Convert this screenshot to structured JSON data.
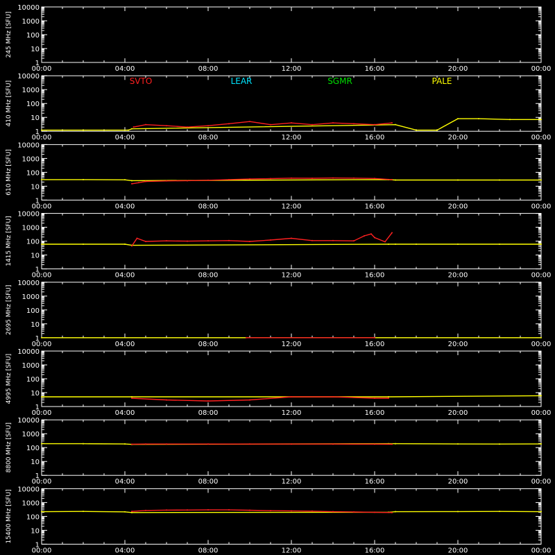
{
  "colors": {
    "background": "#000000",
    "axes": "#ffffff",
    "SVTO": "#ff2020",
    "LEAR": "#00e5ff",
    "SGMR": "#00dd00",
    "PALE": "#ffff00"
  },
  "chart_data": [
    {
      "type": "line",
      "frequency_label": "245 MHz",
      "unit_label": "[SFU]",
      "yscale": "log",
      "ylim": [
        1,
        10000
      ],
      "ytick_labels": [
        "10000",
        "1000",
        "100",
        "10",
        "1"
      ],
      "xlim": [
        "00:00",
        "24:00"
      ],
      "xtick_labels": [
        "00:00",
        "04:00",
        "08:00",
        "12:00",
        "16:00",
        "20:00",
        "00:00"
      ],
      "legend": [],
      "series": []
    },
    {
      "type": "line",
      "frequency_label": "410 MHz",
      "unit_label": "[SFU]",
      "yscale": "log",
      "ylim": [
        1,
        10000
      ],
      "ytick_labels": [
        "10000",
        "1000",
        "100",
        "10",
        "1"
      ],
      "xlim": [
        "00:00",
        "24:00"
      ],
      "xtick_labels": [
        "00:00",
        "04:00",
        "08:00",
        "12:00",
        "16:00",
        "20:00",
        "00:00"
      ],
      "legend": [
        "SVTO",
        "LEAR",
        "SGMR",
        "PALE"
      ],
      "series": [
        {
          "name": "PALE",
          "color": "#ffff00",
          "x": [
            "00:00",
            "02:00",
            "04:10",
            "04:20",
            "17:00",
            "18:00",
            "19:00",
            "20:00",
            "21:00",
            "22:30",
            "24:00"
          ],
          "y": [
            1.2,
            1.2,
            1.2,
            1.5,
            3,
            1.2,
            1.2,
            8,
            8,
            7,
            7
          ]
        },
        {
          "name": "SVTO",
          "color": "#ff2020",
          "x": [
            "04:25",
            "05:00",
            "06:00",
            "07:00",
            "08:00",
            "09:00",
            "10:00",
            "11:00",
            "12:00",
            "13:00",
            "14:00",
            "15:00",
            "16:00",
            "16:50"
          ],
          "y": [
            2,
            3,
            2.5,
            2,
            2.5,
            3.5,
            5,
            3,
            4,
            3,
            4,
            3.5,
            3,
            4
          ]
        }
      ]
    },
    {
      "type": "line",
      "frequency_label": "610 MHz",
      "unit_label": "[SFU]",
      "yscale": "log",
      "ylim": [
        1,
        10000
      ],
      "ytick_labels": [
        "10000",
        "1000",
        "100",
        "10",
        "1"
      ],
      "xlim": [
        "00:00",
        "24:00"
      ],
      "xtick_labels": [
        "00:00",
        "04:00",
        "08:00",
        "12:00",
        "16:00",
        "20:00",
        "00:00"
      ],
      "legend": [],
      "series": [
        {
          "name": "PALE",
          "color": "#ffff00",
          "x": [
            "00:00",
            "02:00",
            "04:00",
            "04:20",
            "16:40",
            "17:00",
            "20:00",
            "22:00",
            "24:00"
          ],
          "y": [
            30,
            30,
            29,
            25,
            30,
            28,
            28,
            28,
            28
          ]
        },
        {
          "name": "SVTO",
          "color": "#ff2020",
          "x": [
            "04:20",
            "04:40",
            "05:00",
            "06:00",
            "07:00",
            "08:00",
            "09:00",
            "10:00",
            "11:00",
            "12:00",
            "13:00",
            "14:00",
            "15:00",
            "16:00",
            "16:50"
          ],
          "y": [
            15,
            18,
            22,
            24,
            25,
            27,
            30,
            33,
            35,
            38,
            37,
            39,
            38,
            36,
            30
          ]
        }
      ]
    },
    {
      "type": "line",
      "frequency_label": "1415 MHz",
      "unit_label": "[SFU]",
      "yscale": "log",
      "ylim": [
        1,
        10000
      ],
      "ytick_labels": [
        "10000",
        "1000",
        "100",
        "10",
        "1"
      ],
      "xlim": [
        "00:00",
        "24:00"
      ],
      "xtick_labels": [
        "00:00",
        "04:00",
        "08:00",
        "12:00",
        "16:00",
        "20:00",
        "00:00"
      ],
      "legend": [],
      "series": [
        {
          "name": "PALE",
          "color": "#ffff00",
          "x": [
            "00:00",
            "02:00",
            "04:00",
            "04:20",
            "16:40",
            "17:00",
            "18:00",
            "20:00",
            "22:00",
            "24:00"
          ],
          "y": [
            60,
            60,
            60,
            50,
            60,
            60,
            60,
            60,
            60,
            60
          ]
        },
        {
          "name": "SVTO",
          "color": "#ff2020",
          "x": [
            "04:20",
            "04:35",
            "05:00",
            "06:00",
            "07:00",
            "08:00",
            "09:00",
            "10:00",
            "11:00",
            "12:00",
            "13:00",
            "14:00",
            "15:00",
            "15:30",
            "15:50",
            "16:00",
            "16:30",
            "16:50"
          ],
          "y": [
            45,
            160,
            95,
            105,
            100,
            105,
            110,
            95,
            120,
            160,
            110,
            110,
            105,
            240,
            330,
            180,
            90,
            400
          ]
        }
      ]
    },
    {
      "type": "line",
      "frequency_label": "2695 MHz",
      "unit_label": "[SFU]",
      "yscale": "log",
      "ylim": [
        1,
        10000
      ],
      "ytick_labels": [
        "10000",
        "1000",
        "100",
        "10",
        "1"
      ],
      "xlim": [
        "00:00",
        "24:00"
      ],
      "xtick_labels": [
        "00:00",
        "04:00",
        "08:00",
        "12:00",
        "16:00",
        "20:00",
        "00:00"
      ],
      "legend": [],
      "series": [
        {
          "name": "PALE",
          "color": "#ffff00",
          "x": [
            "00:00",
            "24:00"
          ],
          "y": [
            1,
            1
          ]
        },
        {
          "name": "SVTO",
          "color": "#ff2020",
          "x": [
            "09:50",
            "16:00"
          ],
          "y": [
            1,
            1
          ]
        }
      ]
    },
    {
      "type": "line",
      "frequency_label": "4995 MHz",
      "unit_label": "[SFU]",
      "yscale": "log",
      "ylim": [
        1,
        10000
      ],
      "ytick_labels": [
        "10000",
        "1000",
        "100",
        "10",
        "1"
      ],
      "xlim": [
        "00:00",
        "24:00"
      ],
      "xtick_labels": [
        "00:00",
        "04:00",
        "08:00",
        "12:00",
        "16:00",
        "20:00",
        "00:00"
      ],
      "legend": [],
      "series": [
        {
          "name": "PALE",
          "color": "#ffff00",
          "x": [
            "00:00",
            "04:20",
            "16:40",
            "24:00"
          ],
          "y": [
            5,
            5,
            5,
            6
          ]
        },
        {
          "name": "SVTO",
          "color": "#ff2020",
          "x": [
            "04:20",
            "06:00",
            "08:00",
            "10:00",
            "12:00",
            "14:00",
            "16:00",
            "16:40"
          ],
          "y": [
            4,
            3,
            2.5,
            3,
            5,
            5,
            4,
            4
          ]
        }
      ]
    },
    {
      "type": "line",
      "frequency_label": "8800 MHz",
      "unit_label": "[SFU]",
      "yscale": "log",
      "ylim": [
        1,
        10000
      ],
      "ytick_labels": [
        "10000",
        "1000",
        "100",
        "10",
        "1"
      ],
      "xlim": [
        "00:00",
        "24:00"
      ],
      "xtick_labels": [
        "00:00",
        "04:00",
        "08:00",
        "12:00",
        "16:00",
        "20:00",
        "00:00"
      ],
      "legend": [],
      "series": [
        {
          "name": "PALE",
          "color": "#ffff00",
          "x": [
            "00:00",
            "02:00",
            "04:00",
            "04:20",
            "16:40",
            "17:00",
            "20:00",
            "22:00",
            "24:00"
          ],
          "y": [
            190,
            190,
            185,
            170,
            190,
            190,
            185,
            180,
            185
          ]
        },
        {
          "name": "SVTO",
          "color": "#ff2020",
          "x": [
            "04:20",
            "05:00",
            "06:00",
            "08:00",
            "10:00",
            "12:00",
            "14:00",
            "16:00",
            "16:50"
          ],
          "y": [
            175,
            180,
            180,
            180,
            180,
            180,
            180,
            178,
            175
          ]
        }
      ]
    },
    {
      "type": "line",
      "frequency_label": "15400 MHz",
      "unit_label": "[SFU]",
      "yscale": "log",
      "ylim": [
        1,
        10000
      ],
      "ytick_labels": [
        "10000",
        "1000",
        "100",
        "10",
        "1"
      ],
      "xlim": [
        "00:00",
        "24:00"
      ],
      "xtick_labels": [
        "00:00",
        "04:00",
        "08:00",
        "12:00",
        "16:00",
        "20:00",
        "00:00"
      ],
      "legend": [],
      "series": [
        {
          "name": "PALE",
          "color": "#ffff00",
          "x": [
            "00:00",
            "02:00",
            "04:00",
            "04:20",
            "16:40",
            "17:00",
            "20:00",
            "22:00",
            "24:00"
          ],
          "y": [
            220,
            230,
            215,
            190,
            200,
            220,
            225,
            230,
            220
          ]
        },
        {
          "name": "SVTO",
          "color": "#ff2020",
          "x": [
            "04:20",
            "05:00",
            "06:00",
            "07:00",
            "08:00",
            "09:00",
            "10:00",
            "11:00",
            "12:00",
            "13:00",
            "14:00",
            "15:00",
            "16:00",
            "16:50"
          ],
          "y": [
            230,
            270,
            285,
            290,
            300,
            300,
            280,
            260,
            250,
            240,
            220,
            210,
            200,
            190
          ]
        }
      ]
    }
  ]
}
